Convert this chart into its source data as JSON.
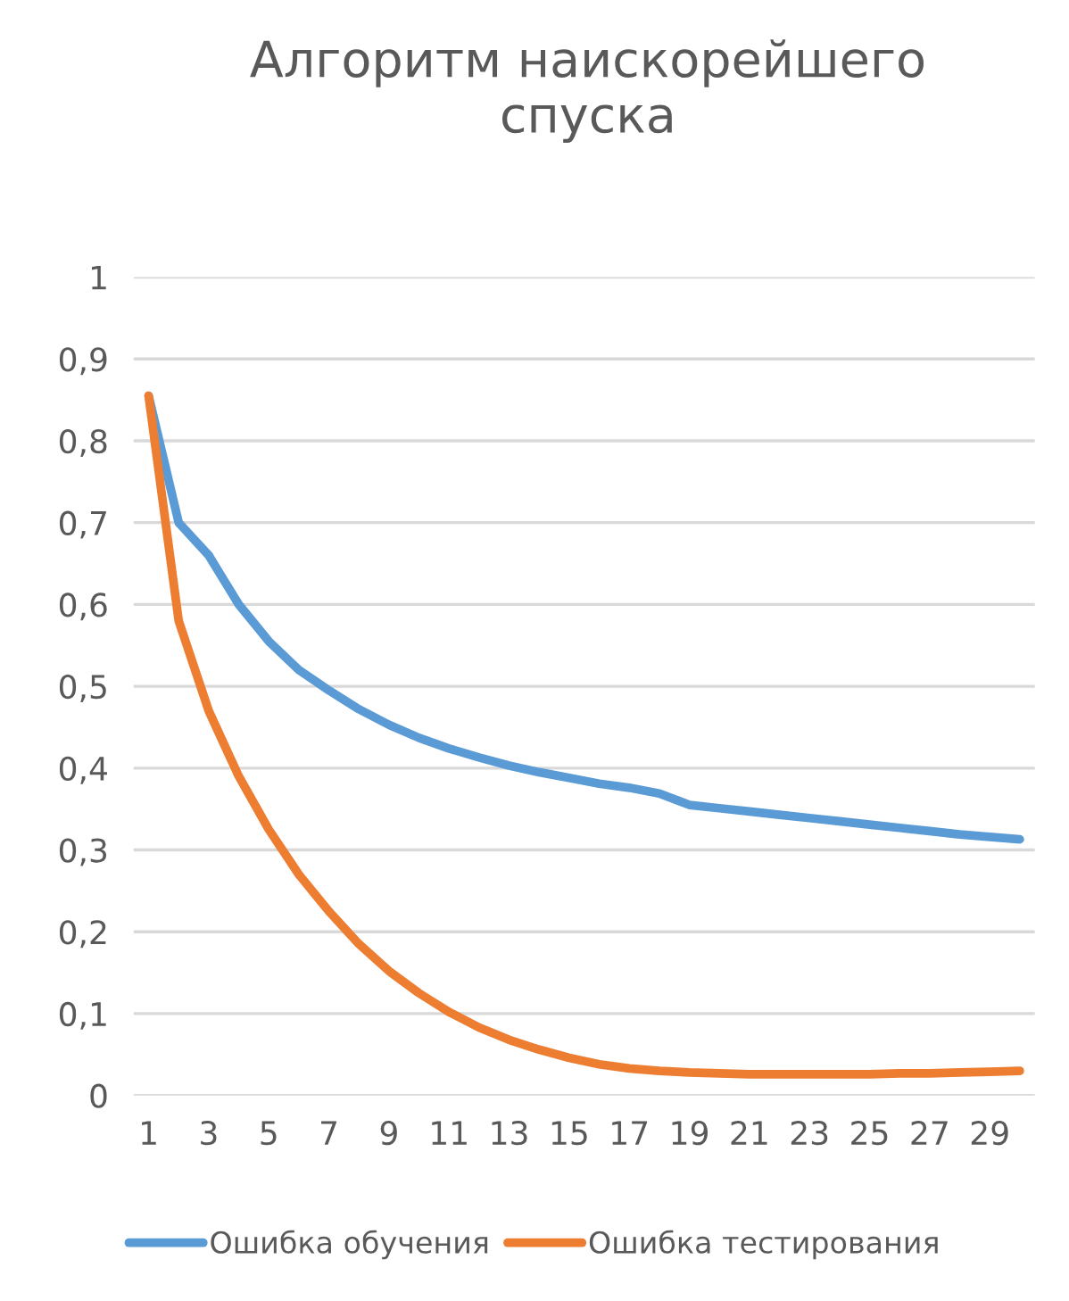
{
  "chart_data": {
    "type": "line",
    "title": "Алгоритм наискорейшего спуска",
    "categories": [
      "1",
      null,
      "3",
      null,
      "5",
      null,
      "7",
      null,
      "9",
      null,
      "11",
      null,
      "13",
      null,
      "15",
      null,
      "17",
      null,
      "19",
      null,
      "21",
      null,
      "23",
      null,
      "25",
      null,
      "27",
      null,
      "29",
      null
    ],
    "series": [
      {
        "name": "Ошибка обучения",
        "color": "#5b9bd5",
        "values": [
          0.855,
          0.7,
          0.66,
          0.6,
          0.555,
          0.52,
          0.495,
          0.472,
          0.453,
          0.437,
          0.424,
          0.413,
          0.403,
          0.395,
          0.388,
          0.381,
          0.376,
          0.369,
          0.355,
          0.351,
          0.347,
          0.343,
          0.339,
          0.335,
          0.331,
          0.327,
          0.323,
          0.319,
          0.316,
          0.313
        ]
      },
      {
        "name": "Ошибка тестирования",
        "color": "#ed7d31",
        "values": [
          0.855,
          0.58,
          0.47,
          0.39,
          0.325,
          0.27,
          0.225,
          0.185,
          0.152,
          0.125,
          0.102,
          0.083,
          0.068,
          0.056,
          0.046,
          0.038,
          0.033,
          0.03,
          0.028,
          0.027,
          0.026,
          0.026,
          0.026,
          0.026,
          0.026,
          0.027,
          0.027,
          0.028,
          0.029,
          0.03
        ]
      }
    ],
    "ylim": [
      0,
      1
    ],
    "yticks": [
      0,
      {
        "value": 0.1,
        "label": "0,1"
      },
      {
        "value": 0.2,
        "label": "0,2"
      },
      {
        "value": 0.3,
        "label": "0,3"
      },
      {
        "value": 0.4,
        "label": "0,4"
      },
      {
        "value": 0.5,
        "label": "0,5"
      },
      {
        "value": 0.6,
        "label": "0,6"
      },
      {
        "value": 0.7,
        "label": "0,7"
      },
      {
        "value": 0.8,
        "label": "0,8"
      },
      {
        "value": 0.9,
        "label": "0,9"
      },
      1
    ],
    "grid": "y",
    "legend": "bottom",
    "marker": "none",
    "line_style": "solid"
  }
}
